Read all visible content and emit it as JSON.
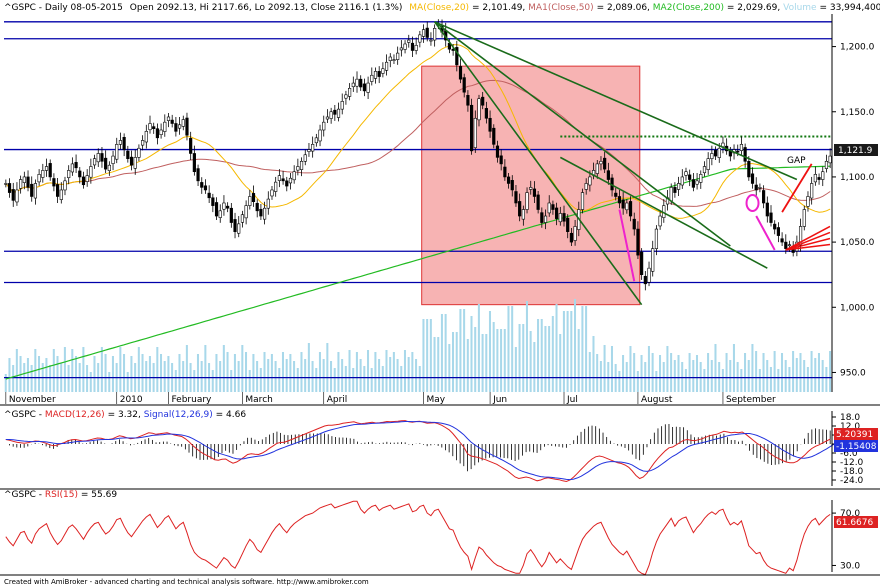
{
  "header": {
    "symbol": "^GSPC - Daily 08-05-2015",
    "ohlc": "Open 2092.13, Hi 2117.66, Lo 2092.13, Close 2116.1 (1.3%)",
    "ma": "MA(Close,20)",
    "ma_val": "= 2,101.49,",
    "ma1": "MA1(Close,50)",
    "ma1_val": "= 2,089.06,",
    "ma2": "MA2(Close,200)",
    "ma2_val": "= 2,029.69,",
    "vol": "Volume",
    "vol_val": "= 33,994,400.00"
  },
  "macd_header": {
    "sym": "^GSPC - ",
    "macd": "MACD(12,26)",
    "macd_val": " = 3.32, ",
    "signal": "Signal(12,26,9)",
    "signal_val": " = 4.66"
  },
  "rsi_header": {
    "sym": "^GSPC - ",
    "rsi": "RSI(15)",
    "rsi_val": " = 55.69"
  },
  "footer": "Created with AmiBroker - advanced charting and technical analysis software. http://www.amibroker.com",
  "annotation_gap": "GAP",
  "price_label": "1,121.9",
  "macd_label_1": "5.20391",
  "macd_label_2": "-1.15408",
  "rsi_label": "61.6676",
  "colors": {
    "background": "#ffffff",
    "candle_up": "#ffffff",
    "candle_down": "#000000",
    "ma20": "#f5b800",
    "ma50": "#c06060",
    "ma200": "#22bb22",
    "volume": "#a8d8ea",
    "hline": "#0000aa",
    "trendline": "#1a6b1a",
    "zone": "#f5a0a0",
    "macd": "#dd2222",
    "signal": "#2233dd",
    "rsi": "#dd2222",
    "arrow_red": "#ee1111",
    "arrow_magenta": "#ee22cc"
  },
  "chart_data": [
    {
      "type": "candlestick",
      "title": "^GSPC - Daily",
      "x_tick_labels": [
        "November",
        "2010",
        "February",
        "March",
        "April",
        "May",
        "Jun",
        "Jul",
        "August",
        "September"
      ],
      "y_tick_labels": [
        "950.0",
        "1,000.0",
        "1,050.0",
        "1,100.0",
        "1,150.0",
        "1,200.0"
      ],
      "ylim": [
        935,
        1225
      ],
      "grid": false,
      "horizontal_lines": [
        1219,
        1206,
        1121,
        1043,
        1019,
        946
      ],
      "horizontal_dotted_line": 1131,
      "shaded_zone": {
        "start": "May",
        "end": "Jul",
        "low": 1002,
        "high": 1185
      },
      "closes": [
        1095,
        1088,
        1082,
        1090,
        1098,
        1100,
        1092,
        1085,
        1095,
        1102,
        1105,
        1108,
        1100,
        1093,
        1085,
        1090,
        1097,
        1105,
        1110,
        1107,
        1100,
        1094,
        1101,
        1108,
        1114,
        1118,
        1112,
        1106,
        1109,
        1116,
        1125,
        1128,
        1121,
        1114,
        1109,
        1115,
        1122,
        1128,
        1135,
        1141,
        1137,
        1130,
        1136,
        1142,
        1146,
        1141,
        1135,
        1140,
        1144,
        1132,
        1118,
        1104,
        1097,
        1092,
        1090,
        1084,
        1078,
        1070,
        1074,
        1080,
        1076,
        1065,
        1058,
        1064,
        1071,
        1078,
        1085,
        1081,
        1074,
        1070,
        1076,
        1083,
        1090,
        1096,
        1101,
        1097,
        1093,
        1099,
        1104,
        1108,
        1112,
        1117,
        1121,
        1125,
        1130,
        1136,
        1142,
        1146,
        1150,
        1148,
        1152,
        1158,
        1163,
        1168,
        1172,
        1175,
        1169,
        1166,
        1172,
        1178,
        1181,
        1177,
        1183,
        1188,
        1192,
        1190,
        1195,
        1199,
        1202,
        1205,
        1197,
        1201,
        1209,
        1213,
        1207,
        1205,
        1214,
        1217,
        1211,
        1205,
        1198,
        1197,
        1186,
        1175,
        1165,
        1155,
        1120,
        1145,
        1160,
        1155,
        1145,
        1135,
        1125,
        1115,
        1110,
        1100,
        1095,
        1090,
        1080,
        1070,
        1075,
        1088,
        1092,
        1085,
        1075,
        1065,
        1070,
        1080,
        1075,
        1068,
        1072,
        1066,
        1058,
        1050,
        1062,
        1075,
        1088,
        1095,
        1100,
        1105,
        1110,
        1112,
        1106,
        1098,
        1090,
        1085,
        1080,
        1076,
        1080,
        1070,
        1060,
        1040,
        1025,
        1018,
        1030,
        1045,
        1060,
        1070,
        1078,
        1084,
        1092,
        1088,
        1095,
        1100,
        1104,
        1098,
        1092,
        1097,
        1102,
        1108,
        1114,
        1118,
        1116,
        1122,
        1126,
        1120,
        1116,
        1121,
        1119,
        1125,
        1112,
        1100,
        1095,
        1090,
        1092,
        1080,
        1070,
        1065,
        1060,
        1055,
        1050,
        1045,
        1048,
        1042,
        1050,
        1062,
        1075,
        1085,
        1095,
        1102,
        1098,
        1104,
        1112,
        1116
      ]
    },
    {
      "type": "line",
      "title": "MACD(12,26)",
      "y_tick_labels": [
        "18.0",
        "12.0",
        "6.0",
        "0.0",
        "-6.0",
        "-12.0",
        "-18.0",
        "-24.0"
      ],
      "ylim": [
        -28,
        22
      ],
      "series": [
        {
          "name": "MACD(12,26)",
          "values": [
            3,
            2.5,
            1.8,
            1.2,
            0.8,
            0.5,
            0.8,
            1.5,
            2.0,
            1.8,
            1.2,
            0.5,
            -0.5,
            -1.2,
            -0.8,
            0.2,
            1.0,
            2.2,
            2.8,
            3.0,
            2.5,
            2.0,
            2.2,
            2.8,
            3.5,
            4.0,
            3.8,
            3.2,
            3.0,
            3.4,
            4.5,
            5.5,
            5.0,
            4.2,
            3.5,
            3.8,
            4.5,
            5.5,
            6.5,
            7.5,
            7.2,
            6.5,
            6.8,
            7.2,
            7.5,
            6.8,
            6.0,
            5.5,
            5.0,
            3.5,
            1.5,
            -1.0,
            -3.0,
            -5.0,
            -6.5,
            -7.8,
            -9.0,
            -10.5,
            -10.8,
            -10.2,
            -10.0,
            -11.5,
            -12.8,
            -12.0,
            -10.5,
            -8.8,
            -7.0,
            -6.5,
            -6.8,
            -7.0,
            -6.0,
            -4.5,
            -2.8,
            -1.2,
            0.5,
            1.0,
            1.2,
            2.0,
            3.0,
            4.0,
            5.0,
            6.0,
            7.0,
            8.0,
            9.0,
            10.0,
            11.0,
            12.0,
            12.5,
            12.5,
            12.8,
            13.2,
            13.8,
            14.2,
            14.5,
            14.8,
            14.0,
            13.5,
            13.8,
            14.2,
            14.5,
            14.0,
            14.2,
            14.5,
            15.0,
            14.8,
            15.0,
            15.2,
            15.5,
            15.6,
            14.8,
            14.5,
            15.0,
            15.2,
            14.5,
            13.8,
            14.0,
            14.2,
            13.5,
            12.5,
            11.0,
            9.5,
            7.0,
            4.0,
            1.0,
            -2.0,
            -6.5,
            -8.0,
            -8.5,
            -9.0,
            -9.8,
            -10.5,
            -11.5,
            -12.5,
            -13.5,
            -15.0,
            -16.5,
            -18.0,
            -20.0,
            -22.0,
            -23.0,
            -22.5,
            -22.0,
            -22.5,
            -23.5,
            -24.5,
            -24.0,
            -23.0,
            -22.5,
            -23.0,
            -23.5,
            -23.8,
            -24.5,
            -25.0,
            -24.0,
            -22.0,
            -19.5,
            -17.0,
            -14.5,
            -12.0,
            -10.0,
            -8.5,
            -8.0,
            -8.5,
            -9.5,
            -10.5,
            -11.5,
            -12.5,
            -13.0,
            -14.0,
            -15.5,
            -18.0,
            -21.0,
            -23.0,
            -22.0,
            -19.5,
            -16.0,
            -12.5,
            -9.5,
            -7.0,
            -4.5,
            -2.5,
            -2.0,
            -0.5,
            1.0,
            2.5,
            3.0,
            2.5,
            2.2,
            2.8,
            3.5,
            4.5,
            5.5,
            6.0,
            6.5,
            7.5,
            8.5,
            8.0,
            7.5,
            7.8,
            7.5,
            8.0,
            6.5,
            4.5,
            2.5,
            0.5,
            -1.0,
            -3.0,
            -5.0,
            -7.0,
            -8.5,
            -9.8,
            -11.0,
            -12.0,
            -12.5,
            -12.5,
            -11.5,
            -9.5,
            -7.5,
            -5.0,
            -3.0,
            -1.5,
            -0.5,
            0.8,
            2.0,
            3.3
          ]
        },
        {
          "name": "Signal(12,26,9)",
          "values": [
            3.0,
            3.0,
            2.8,
            2.5,
            2.2,
            1.9,
            1.7,
            1.6,
            1.6,
            1.7,
            1.6,
            1.4,
            1.0,
            0.6,
            0.3,
            0.3,
            0.4,
            0.7,
            1.1,
            1.5,
            1.7,
            1.8,
            1.9,
            2.1,
            2.4,
            2.7,
            2.9,
            3.0,
            3.0,
            3.1,
            3.4,
            3.8,
            4.0,
            4.1,
            4.0,
            4.0,
            4.1,
            4.4,
            4.8,
            5.3,
            5.7,
            5.9,
            6.1,
            6.3,
            6.6,
            6.6,
            6.5,
            6.3,
            6.0,
            5.5,
            4.7,
            3.6,
            2.3,
            0.9,
            -0.6,
            -2.0,
            -3.4,
            -4.8,
            -6.0,
            -6.8,
            -7.5,
            -8.3,
            -9.2,
            -9.8,
            -10.0,
            -9.8,
            -9.3,
            -8.8,
            -8.4,
            -8.1,
            -7.7,
            -7.1,
            -6.3,
            -5.3,
            -4.1,
            -3.1,
            -2.2,
            -1.3,
            -0.4,
            0.5,
            1.4,
            2.3,
            3.2,
            4.1,
            5.1,
            6.1,
            7.1,
            8.1,
            8.9,
            9.6,
            10.2,
            10.8,
            11.4,
            11.9,
            12.4,
            12.9,
            13.1,
            13.2,
            13.3,
            13.5,
            13.7,
            13.8,
            13.9,
            14.0,
            14.2,
            14.3,
            14.5,
            14.6,
            14.8,
            15.0,
            15.0,
            14.9,
            14.9,
            14.9,
            14.8,
            14.6,
            14.5,
            14.4,
            14.2,
            13.8,
            13.3,
            12.6,
            11.5,
            10.0,
            8.2,
            6.2,
            3.6,
            1.3,
            -0.6,
            -2.2,
            -3.7,
            -5.1,
            -6.4,
            -7.6,
            -8.8,
            -10.0,
            -11.3,
            -12.7,
            -14.1,
            -15.7,
            -17.2,
            -18.2,
            -19.0,
            -19.7,
            -20.4,
            -21.2,
            -21.7,
            -22.0,
            -22.1,
            -22.3,
            -22.6,
            -22.8,
            -23.2,
            -23.6,
            -23.7,
            -23.4,
            -22.6,
            -21.5,
            -20.1,
            -18.5,
            -16.8,
            -15.1,
            -13.7,
            -12.7,
            -12.1,
            -11.7,
            -11.7,
            -11.9,
            -12.1,
            -12.5,
            -13.1,
            -14.1,
            -15.5,
            -17.0,
            -18.0,
            -18.3,
            -17.8,
            -16.7,
            -15.3,
            -13.6,
            -11.8,
            -9.9,
            -8.3,
            -6.9,
            -5.3,
            -3.7,
            -2.1,
            -1.0,
            -0.3,
            0.3,
            0.8,
            1.4,
            2.1,
            2.8,
            3.4,
            4.0,
            4.7,
            5.5,
            6.0,
            6.3,
            6.6,
            6.8,
            7.0,
            7.0,
            6.5,
            5.7,
            4.7,
            3.6,
            2.3,
            0.8,
            -0.8,
            -2.3,
            -3.9,
            -5.3,
            -6.7,
            -7.9,
            -8.8,
            -9.4,
            -9.5,
            -9.1,
            -8.4,
            -7.3,
            -6.0,
            -4.6,
            -3.3,
            -1.7,
            -0.2,
            1.3
          ]
        }
      ]
    },
    {
      "type": "line",
      "title": "RSI(15)",
      "y_tick_labels": [
        "70.0",
        "30.0"
      ],
      "ylim": [
        25,
        80
      ],
      "series": [
        {
          "name": "RSI(15)",
          "values": [
            52,
            48,
            45,
            50,
            55,
            56,
            50,
            47,
            54,
            58,
            60,
            62,
            55,
            50,
            46,
            49,
            54,
            59,
            61,
            58,
            54,
            50,
            55,
            59,
            62,
            63,
            58,
            54,
            56,
            60,
            65,
            66,
            60,
            55,
            52,
            56,
            60,
            64,
            67,
            69,
            64,
            59,
            62,
            66,
            68,
            63,
            58,
            61,
            63,
            55,
            46,
            40,
            37,
            35,
            34,
            32,
            30,
            28,
            32,
            36,
            34,
            30,
            28,
            33,
            39,
            45,
            50,
            47,
            42,
            40,
            45,
            50,
            55,
            59,
            62,
            58,
            55,
            59,
            62,
            64,
            66,
            68,
            69,
            70,
            72,
            74,
            75,
            76,
            77,
            74,
            75,
            76,
            77,
            78,
            79,
            79,
            73,
            70,
            73,
            75,
            76,
            72,
            74,
            75,
            76,
            73,
            74,
            75,
            76,
            77,
            71,
            72,
            75,
            76,
            70,
            68,
            72,
            73,
            68,
            63,
            58,
            57,
            50,
            44,
            40,
            37,
            27,
            36,
            44,
            42,
            38,
            35,
            32,
            30,
            29,
            27,
            26,
            25,
            24,
            24,
            30,
            39,
            42,
            38,
            33,
            29,
            33,
            40,
            36,
            32,
            35,
            32,
            29,
            27,
            35,
            43,
            50,
            54,
            57,
            60,
            62,
            63,
            57,
            51,
            46,
            43,
            40,
            38,
            41,
            36,
            31,
            26,
            24,
            23,
            30,
            40,
            48,
            54,
            58,
            62,
            66,
            60,
            64,
            66,
            67,
            61,
            55,
            59,
            62,
            66,
            69,
            71,
            69,
            72,
            73,
            66,
            61,
            63,
            61,
            64,
            55,
            45,
            42,
            39,
            40,
            34,
            30,
            28,
            27,
            26,
            25,
            24,
            28,
            26,
            34,
            45,
            54,
            60,
            64,
            66,
            61,
            64,
            67,
            69
          ]
        }
      ]
    }
  ]
}
